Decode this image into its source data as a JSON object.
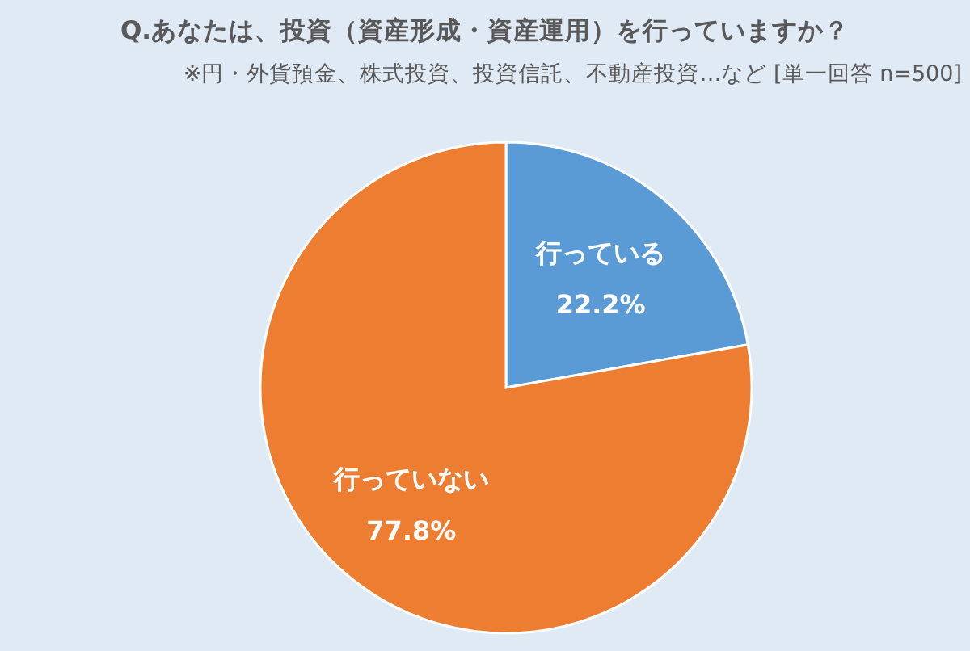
{
  "chart_data": {
    "type": "pie",
    "title": "Q.あなたは、投資（資産形成・資産運用）を行っていますか？",
    "subtitle": "※円・外貨預金、株式投資、投資信託、不動産投資…など [単一回答 n=500]",
    "categories": [
      "行っている",
      "行っていない"
    ],
    "values": [
      22.2,
      77.8
    ],
    "colors": [
      "#5b9bd5",
      "#ed7d31"
    ],
    "value_labels": [
      "22.2%",
      "77.8%"
    ]
  }
}
